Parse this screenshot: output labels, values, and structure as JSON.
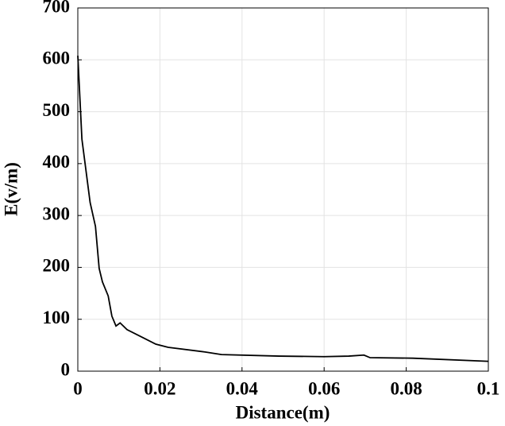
{
  "chart_data": {
    "type": "line",
    "xlabel": "Distance(m)",
    "ylabel": "E(v/m)",
    "series": [
      {
        "name": "E",
        "color": "#000000",
        "x": [
          0,
          0.001,
          0.003,
          0.0043,
          0.0052,
          0.006,
          0.0074,
          0.0083,
          0.0093,
          0.0103,
          0.012,
          0.016,
          0.019,
          0.022,
          0.031,
          0.035,
          0.049,
          0.06,
          0.066,
          0.0697,
          0.0712,
          0.0816,
          0.1
        ],
        "values": [
          608,
          447,
          325,
          279,
          198,
          172,
          145,
          106,
          87,
          93,
          80,
          64,
          52,
          46,
          37,
          32,
          29,
          28,
          29,
          31,
          26,
          25,
          19
        ]
      }
    ],
    "xlim": [
      0,
      0.1
    ],
    "xticks": [
      0,
      0.02,
      0.04,
      0.06,
      0.08,
      0.1
    ],
    "ylim": [
      0,
      700
    ],
    "yticks": [
      0,
      100,
      200,
      300,
      400,
      500,
      600,
      700
    ],
    "grid": true
  }
}
